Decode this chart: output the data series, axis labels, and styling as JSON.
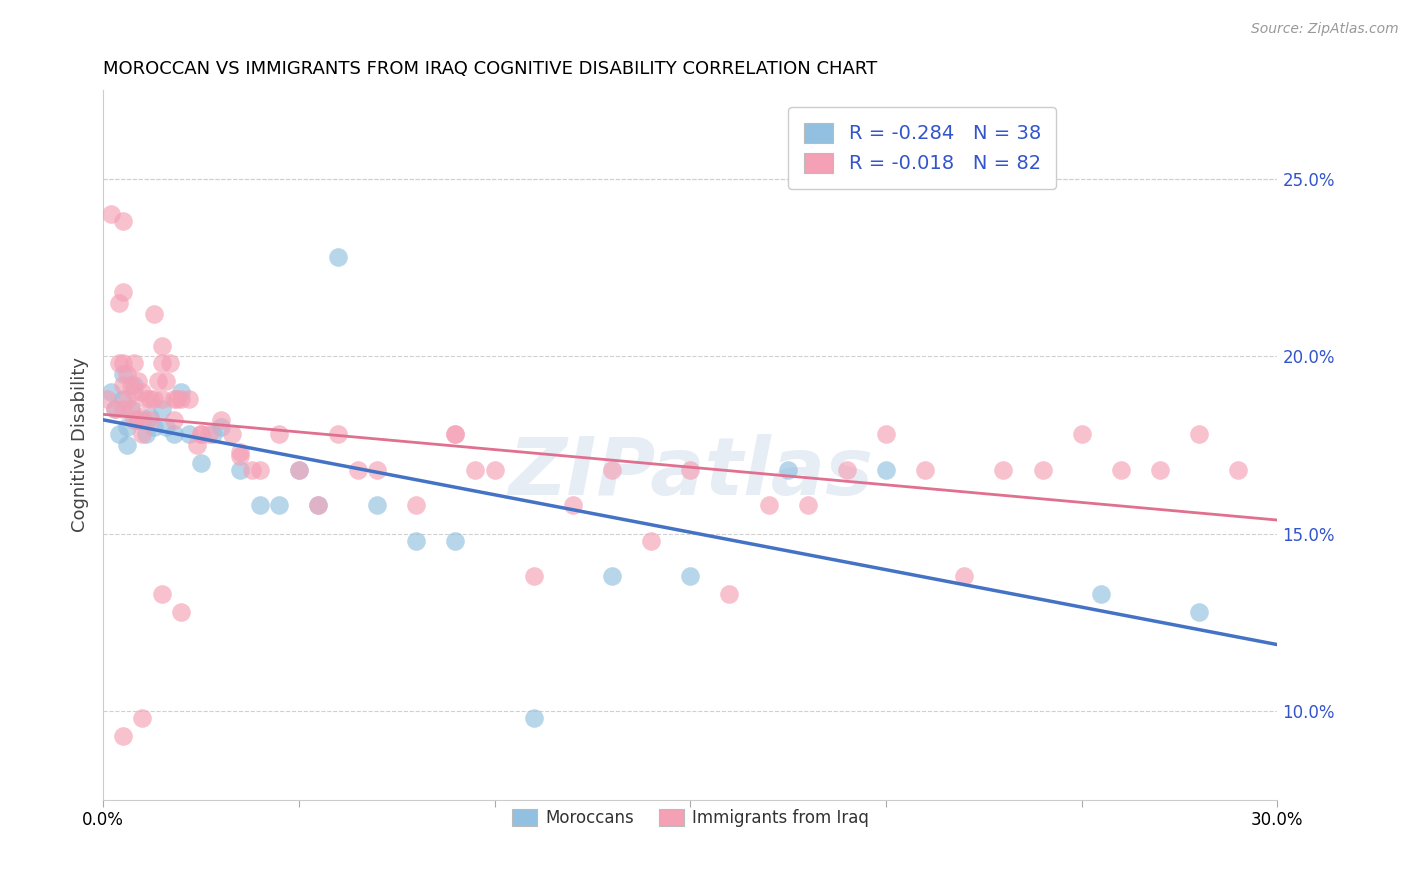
{
  "title": "MOROCCAN VS IMMIGRANTS FROM IRAQ COGNITIVE DISABILITY CORRELATION CHART",
  "source": "Source: ZipAtlas.com",
  "ylabel": "Cognitive Disability",
  "right_yticks": [
    "25.0%",
    "20.0%",
    "15.0%",
    "10.0%"
  ],
  "right_ytick_vals": [
    0.25,
    0.2,
    0.15,
    0.1
  ],
  "xlim": [
    0.0,
    0.3
  ],
  "ylim": [
    0.075,
    0.275
  ],
  "blue_color": "#92c0e0",
  "pink_color": "#f4a0b5",
  "blue_line_color": "#4472c4",
  "pink_line_color": "#e07090",
  "legend_text_color": "#3355cc",
  "watermark": "ZIPatlas",
  "blue_scatter_x": [
    0.002,
    0.003,
    0.004,
    0.005,
    0.005,
    0.006,
    0.006,
    0.007,
    0.008,
    0.009,
    0.01,
    0.011,
    0.012,
    0.013,
    0.015,
    0.016,
    0.018,
    0.02,
    0.022,
    0.025,
    0.028,
    0.03,
    0.035,
    0.04,
    0.045,
    0.05,
    0.055,
    0.06,
    0.07,
    0.08,
    0.09,
    0.11,
    0.13,
    0.15,
    0.175,
    0.2,
    0.255,
    0.28
  ],
  "blue_scatter_y": [
    0.19,
    0.185,
    0.178,
    0.195,
    0.188,
    0.18,
    0.175,
    0.185,
    0.192,
    0.182,
    0.182,
    0.178,
    0.183,
    0.18,
    0.185,
    0.18,
    0.178,
    0.19,
    0.178,
    0.17,
    0.178,
    0.18,
    0.168,
    0.158,
    0.158,
    0.168,
    0.158,
    0.228,
    0.158,
    0.148,
    0.148,
    0.098,
    0.138,
    0.138,
    0.168,
    0.168,
    0.133,
    0.128
  ],
  "pink_scatter_x": [
    0.001,
    0.002,
    0.003,
    0.004,
    0.004,
    0.005,
    0.005,
    0.005,
    0.005,
    0.005,
    0.006,
    0.006,
    0.007,
    0.007,
    0.008,
    0.008,
    0.008,
    0.009,
    0.009,
    0.01,
    0.01,
    0.01,
    0.011,
    0.012,
    0.012,
    0.013,
    0.013,
    0.014,
    0.015,
    0.015,
    0.015,
    0.016,
    0.017,
    0.018,
    0.018,
    0.019,
    0.02,
    0.022,
    0.024,
    0.025,
    0.027,
    0.03,
    0.033,
    0.035,
    0.038,
    0.04,
    0.045,
    0.05,
    0.055,
    0.06,
    0.065,
    0.07,
    0.08,
    0.09,
    0.1,
    0.11,
    0.12,
    0.13,
    0.14,
    0.16,
    0.17,
    0.18,
    0.19,
    0.2,
    0.21,
    0.22,
    0.23,
    0.24,
    0.25,
    0.26,
    0.27,
    0.28,
    0.29,
    0.005,
    0.01,
    0.015,
    0.02,
    0.025,
    0.035,
    0.09,
    0.095,
    0.15
  ],
  "pink_scatter_y": [
    0.188,
    0.24,
    0.185,
    0.198,
    0.215,
    0.238,
    0.218,
    0.198,
    0.192,
    0.185,
    0.195,
    0.188,
    0.192,
    0.185,
    0.198,
    0.19,
    0.182,
    0.193,
    0.182,
    0.19,
    0.183,
    0.178,
    0.188,
    0.188,
    0.182,
    0.212,
    0.188,
    0.193,
    0.203,
    0.198,
    0.188,
    0.193,
    0.198,
    0.188,
    0.182,
    0.188,
    0.188,
    0.188,
    0.175,
    0.178,
    0.178,
    0.182,
    0.178,
    0.172,
    0.168,
    0.168,
    0.178,
    0.168,
    0.158,
    0.178,
    0.168,
    0.168,
    0.158,
    0.178,
    0.168,
    0.138,
    0.158,
    0.168,
    0.148,
    0.133,
    0.158,
    0.158,
    0.168,
    0.178,
    0.168,
    0.138,
    0.168,
    0.168,
    0.178,
    0.168,
    0.168,
    0.178,
    0.168,
    0.093,
    0.098,
    0.133,
    0.128,
    0.178,
    0.173,
    0.178,
    0.168,
    0.168
  ]
}
